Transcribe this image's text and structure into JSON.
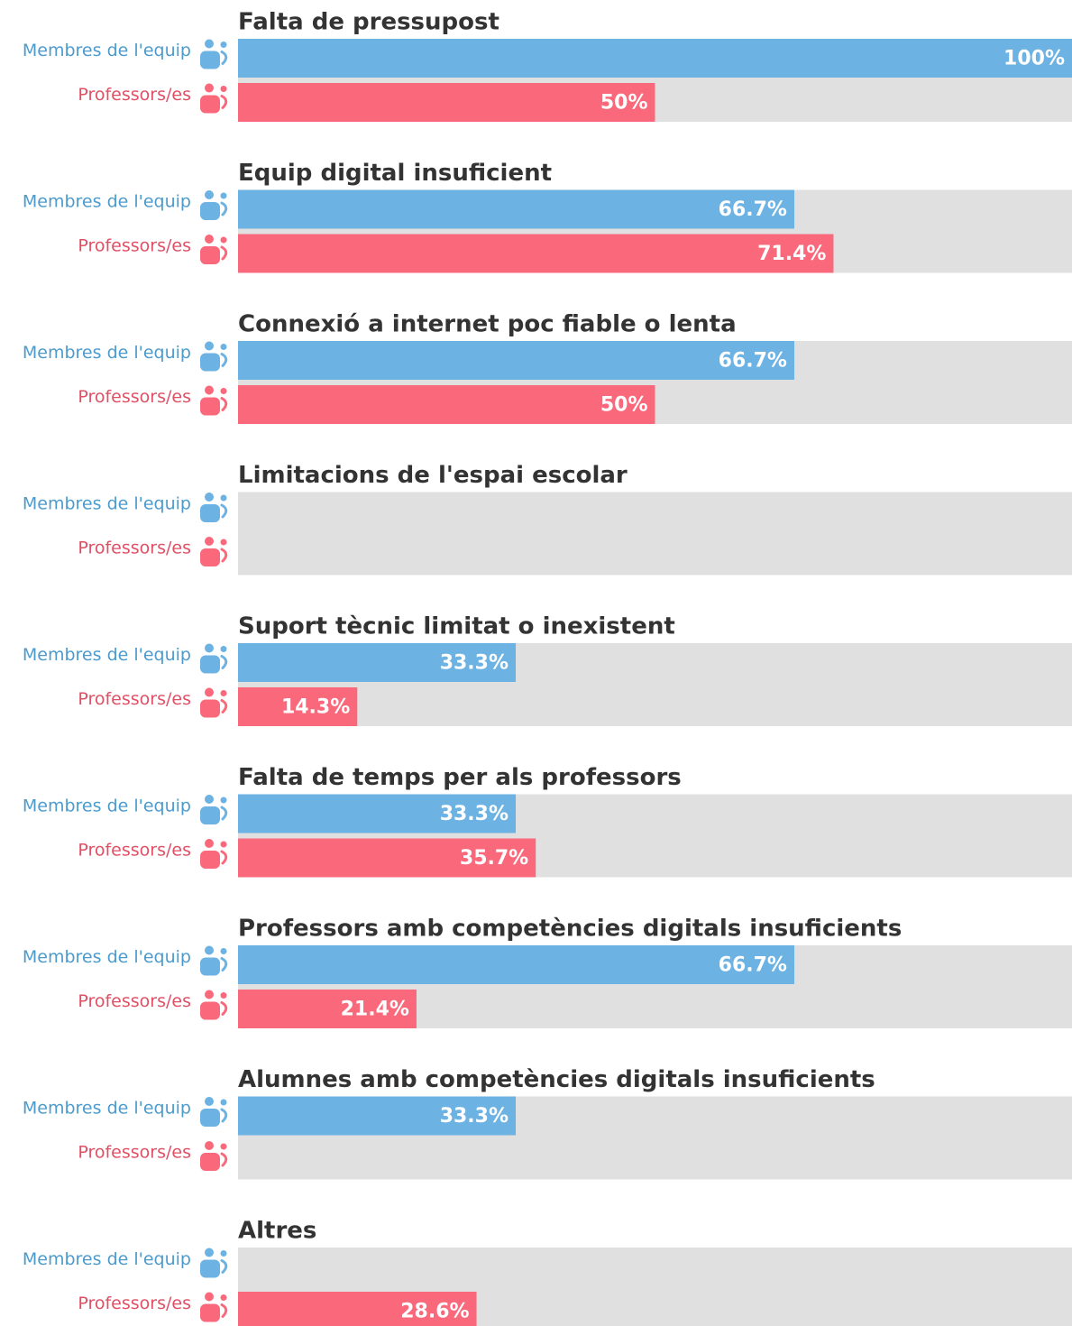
{
  "chart_data": {
    "type": "grouped-bar-horizontal",
    "categories": [
      "Falta de pressupost",
      "Equip digital insuficient",
      "Connexió a internet poc fiable o lenta",
      "Limitacions de l'espai escolar",
      "Suport tècnic limitat o inexistent",
      "Falta de temps per als professors",
      "Professors amb competències digitals insuficients",
      "Alumnes amb competències digitals insuficients",
      "Altres"
    ],
    "xlim": [
      0,
      100
    ],
    "series": [
      {
        "name": "Membres de l'equip",
        "color": "#6cb2e2",
        "label_color": "#4d9bcc",
        "values": [
          100,
          66.7,
          66.7,
          0,
          33.3,
          33.3,
          66.7,
          33.3,
          0
        ],
        "value_labels": [
          "100%",
          "66.7%",
          "66.7%",
          null,
          "33.3%",
          "33.3%",
          "66.7%",
          "33.3%",
          null
        ]
      },
      {
        "name": "Professors/es",
        "color": "#f9697b",
        "label_color": "#df5065",
        "values": [
          50,
          71.4,
          50,
          0,
          14.3,
          35.7,
          21.4,
          0,
          28.6
        ],
        "value_labels": [
          "50%",
          "71.4%",
          "50%",
          null,
          "14.3%",
          "35.7%",
          "21.4%",
          null,
          "28.6%"
        ]
      }
    ]
  }
}
